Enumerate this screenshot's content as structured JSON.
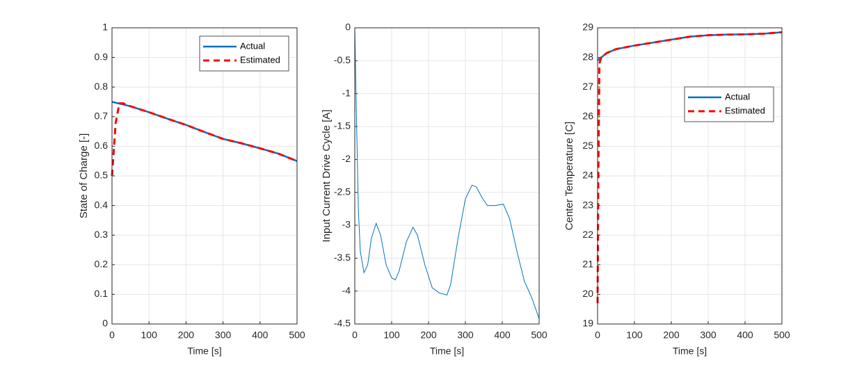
{
  "chart_data": [
    {
      "type": "line",
      "xlabel": "Time [s]",
      "ylabel": "State of Charge [-]",
      "x": [
        0,
        10,
        20,
        30,
        50,
        100,
        150,
        200,
        250,
        300,
        350,
        400,
        450,
        500
      ],
      "series": [
        {
          "name": "Actual",
          "color": "#0072bd",
          "dash": false,
          "values": [
            0.75,
            0.747,
            0.744,
            0.741,
            0.735,
            0.715,
            0.693,
            0.672,
            0.648,
            0.625,
            0.61,
            0.593,
            0.575,
            0.55
          ]
        },
        {
          "name": "Estimated",
          "color": "#ff0000",
          "dash": true,
          "values": [
            0.5,
            0.68,
            0.745,
            0.745,
            0.735,
            0.715,
            0.693,
            0.672,
            0.648,
            0.625,
            0.61,
            0.593,
            0.575,
            0.55
          ]
        }
      ],
      "xlim": [
        0,
        500
      ],
      "xticks": [
        0,
        100,
        200,
        300,
        400,
        500
      ],
      "ylim": [
        0,
        1
      ],
      "yticks": [
        0,
        0.1,
        0.2,
        0.3,
        0.4,
        0.5,
        0.6,
        0.7,
        0.8,
        0.9,
        1
      ],
      "grid": true,
      "legend": "northeast"
    },
    {
      "type": "line",
      "xlabel": "Time [s]",
      "ylabel": "Input Current Drive Cycle [A]",
      "x": [
        0,
        5,
        10,
        15,
        25,
        35,
        45,
        58,
        70,
        85,
        100,
        110,
        120,
        140,
        158,
        170,
        190,
        210,
        230,
        250,
        260,
        280,
        300,
        318,
        330,
        345,
        360,
        380,
        403,
        420,
        440,
        460,
        480,
        500
      ],
      "values": [
        0,
        -1.5,
        -2.8,
        -3.4,
        -3.72,
        -3.6,
        -3.2,
        -2.97,
        -3.15,
        -3.6,
        -3.8,
        -3.83,
        -3.7,
        -3.25,
        -3.03,
        -3.15,
        -3.6,
        -3.95,
        -4.03,
        -4.06,
        -3.9,
        -3.2,
        -2.6,
        -2.39,
        -2.42,
        -2.58,
        -2.7,
        -2.7,
        -2.68,
        -2.9,
        -3.4,
        -3.85,
        -4.1,
        -4.42
      ],
      "color": "#0072bd",
      "xlim": [
        0,
        500
      ],
      "xticks": [
        0,
        100,
        200,
        300,
        400,
        500
      ],
      "ylim": [
        -4.5,
        0
      ],
      "yticks": [
        -4.5,
        -4,
        -3.5,
        -3,
        -2.5,
        -2,
        -1.5,
        -1,
        -0.5,
        0
      ],
      "grid": true
    },
    {
      "type": "line",
      "xlabel": "Time [s]",
      "ylabel": "Center Temperature [C]",
      "x": [
        0,
        2,
        5,
        10,
        25,
        50,
        100,
        150,
        200,
        250,
        300,
        350,
        400,
        450,
        500
      ],
      "series": [
        {
          "name": "Actual",
          "color": "#0072bd",
          "dash": false,
          "values": [
            27.9,
            27.92,
            27.95,
            28.0,
            28.15,
            28.28,
            28.4,
            28.5,
            28.6,
            28.7,
            28.75,
            28.77,
            28.78,
            28.8,
            28.85
          ]
        },
        {
          "name": "Estimated",
          "color": "#ff0000",
          "dash": true,
          "values": [
            19.7,
            24,
            27.8,
            28.0,
            28.15,
            28.28,
            28.4,
            28.5,
            28.6,
            28.7,
            28.75,
            28.77,
            28.78,
            28.8,
            28.85
          ]
        }
      ],
      "xlim": [
        0,
        500
      ],
      "xticks": [
        0,
        100,
        200,
        300,
        400,
        500
      ],
      "ylim": [
        19,
        29
      ],
      "yticks": [
        19,
        20,
        21,
        22,
        23,
        24,
        25,
        26,
        27,
        28,
        29
      ],
      "grid": true,
      "legend": "northeast"
    }
  ]
}
